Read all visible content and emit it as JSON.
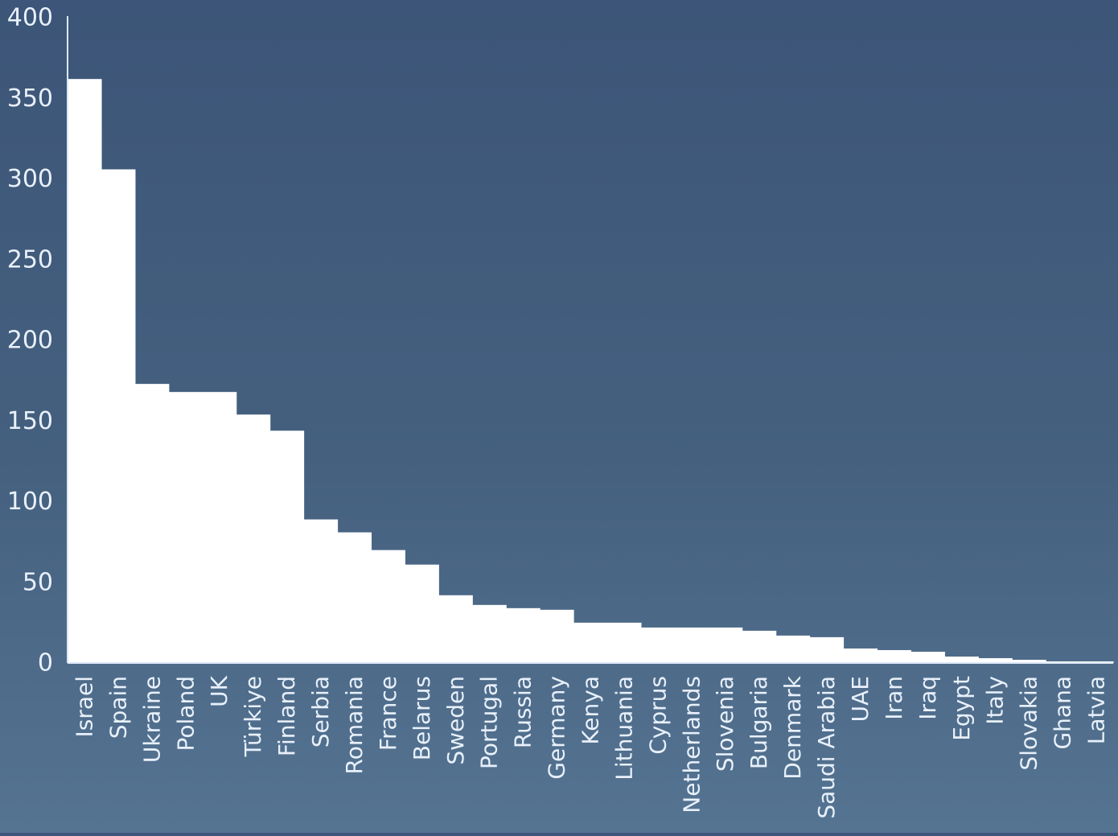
{
  "chart_data": {
    "type": "bar",
    "title": "",
    "xlabel": "",
    "ylabel": "",
    "ylim": [
      0,
      400
    ],
    "yticks": [
      0,
      50,
      100,
      150,
      200,
      250,
      300,
      350,
      400
    ],
    "grid": false,
    "bar_color": "#ffffff",
    "axis_color": "#dce8f7",
    "label_color": "#e8f0fa",
    "categories": [
      "Israel",
      "Spain",
      "Ukraine",
      "Poland",
      "UK",
      "Türkiye",
      "Finland",
      "Serbia",
      "Romania",
      "France",
      "Belarus",
      "Sweden",
      "Portugal",
      "Russia",
      "Germany",
      "Kenya",
      "Lithuania",
      "Cyprus",
      "Netherlands",
      "Slovenia",
      "Bulgaria",
      "Denmark",
      "Saudi Arabia",
      "UAE",
      "Iran",
      "Iraq",
      "Egypt",
      "Italy",
      "Slovakia",
      "Ghana",
      "Latvia"
    ],
    "values": [
      362,
      306,
      173,
      168,
      168,
      154,
      144,
      89,
      81,
      70,
      61,
      42,
      36,
      34,
      33,
      25,
      25,
      22,
      22,
      22,
      20,
      17,
      16,
      9,
      8,
      7,
      4,
      3,
      2,
      1,
      1
    ]
  }
}
